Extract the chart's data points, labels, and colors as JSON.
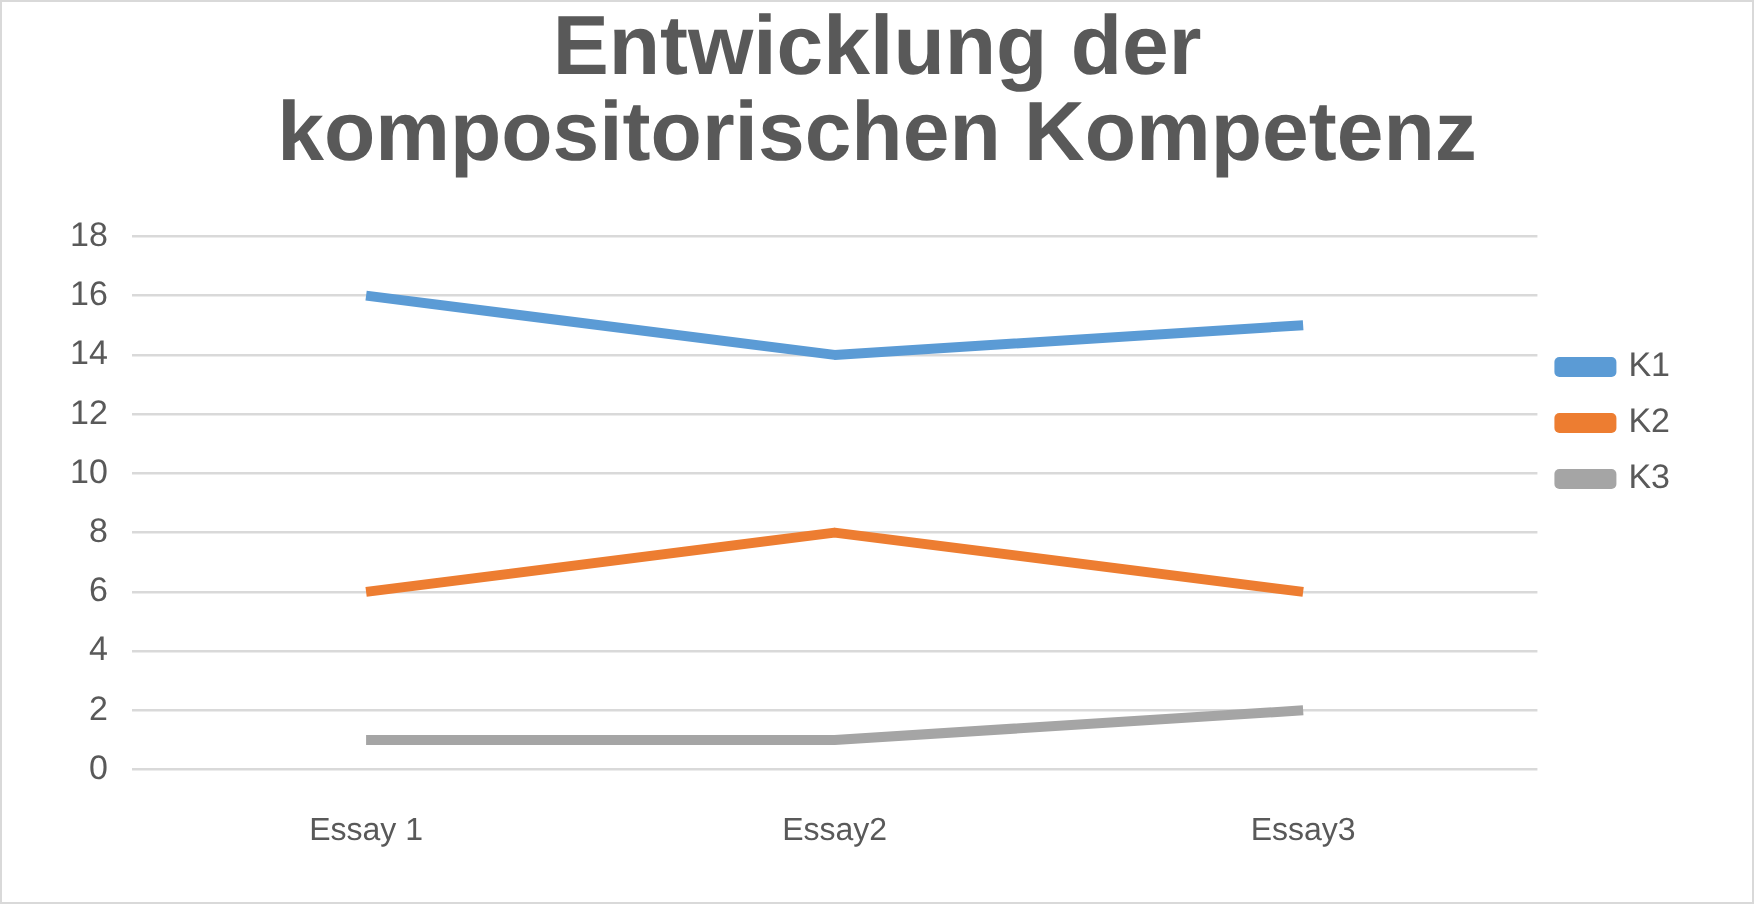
{
  "chart_data": {
    "type": "line",
    "title": "Entwicklung der kompositorischen Kompetenz",
    "categories": [
      "Essay 1",
      "Essay2",
      "Essay3"
    ],
    "series": [
      {
        "name": "K1",
        "color": "#5b9bd5",
        "values": [
          16,
          14,
          15
        ]
      },
      {
        "name": "K2",
        "color": "#ed7d31",
        "values": [
          6,
          8,
          6
        ]
      },
      {
        "name": "K3",
        "color": "#a5a5a5",
        "values": [
          1,
          1,
          2
        ]
      }
    ],
    "ylim": [
      0,
      18
    ],
    "yticks": [
      0,
      2,
      4,
      6,
      8,
      10,
      12,
      14,
      16,
      18
    ],
    "grid": "y",
    "legend": "right",
    "marker": "none"
  }
}
